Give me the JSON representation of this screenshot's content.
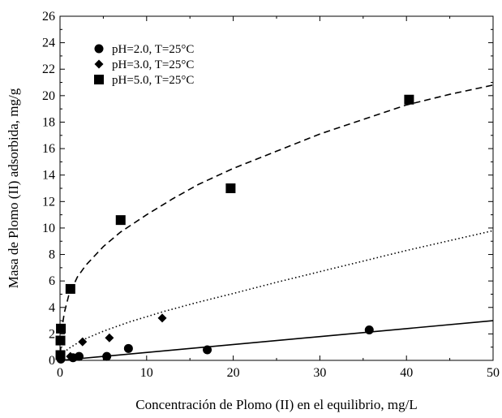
{
  "chart_data": {
    "type": "scatter",
    "title": "",
    "xlabel": "Concentración de Plomo (II) en el equilibrio, mg/L",
    "ylabel": "Masa de Plomo (II) adsorbida, mg/g",
    "xlim": [
      0,
      50
    ],
    "ylim": [
      0,
      26
    ],
    "xticks": [
      0,
      10,
      20,
      30,
      40,
      50
    ],
    "yticks": [
      0,
      2,
      4,
      6,
      8,
      10,
      12,
      14,
      16,
      18,
      20,
      22,
      24,
      26
    ],
    "grid": false,
    "legend_position": "top-left",
    "series": [
      {
        "name": "pH=2.0, T=25°C",
        "marker": "circle",
        "line_style": "solid",
        "points": [
          [
            0.1,
            0.1
          ],
          [
            1.5,
            0.2
          ],
          [
            2.2,
            0.3
          ],
          [
            5.4,
            0.3
          ],
          [
            7.9,
            0.9
          ],
          [
            17.0,
            0.8
          ],
          [
            35.7,
            2.3
          ]
        ],
        "fit": [
          [
            0,
            0
          ],
          [
            50,
            3.0
          ]
        ]
      },
      {
        "name": "pH=3.0, T=25°C",
        "marker": "diamond",
        "line_style": "dotted",
        "points": [
          [
            0.1,
            0.1
          ],
          [
            1.2,
            0.3
          ],
          [
            2.6,
            1.4
          ],
          [
            5.7,
            1.7
          ],
          [
            11.8,
            3.2
          ]
        ],
        "fit": [
          [
            0.2,
            0.35
          ],
          [
            0.5,
            0.6
          ],
          [
            1,
            0.9
          ],
          [
            2,
            1.3
          ],
          [
            3,
            1.65
          ],
          [
            5,
            2.2
          ],
          [
            8,
            2.9
          ],
          [
            12,
            3.7
          ],
          [
            16,
            4.4
          ],
          [
            20,
            5.05
          ],
          [
            25,
            5.9
          ],
          [
            30,
            6.7
          ],
          [
            35,
            7.5
          ],
          [
            40,
            8.3
          ],
          [
            45,
            9.05
          ],
          [
            50,
            9.8
          ]
        ]
      },
      {
        "name": "pH=5.0, T=25°C",
        "marker": "square",
        "line_style": "dashed",
        "points": [
          [
            0.05,
            0.4
          ],
          [
            0.05,
            1.5
          ],
          [
            0.1,
            2.4
          ],
          [
            1.2,
            5.4
          ],
          [
            7.0,
            10.6
          ],
          [
            19.7,
            13.0
          ],
          [
            40.3,
            19.7
          ]
        ],
        "fit": [
          [
            0.05,
            0.5
          ],
          [
            0.2,
            2.3
          ],
          [
            0.5,
            3.6
          ],
          [
            1,
            4.9
          ],
          [
            2,
            6.3
          ],
          [
            3,
            7.2
          ],
          [
            5,
            8.6
          ],
          [
            7,
            9.7
          ],
          [
            10,
            11.0
          ],
          [
            13,
            12.2
          ],
          [
            16,
            13.3
          ],
          [
            20,
            14.5
          ],
          [
            25,
            15.8
          ],
          [
            30,
            17.1
          ],
          [
            35,
            18.2
          ],
          [
            40,
            19.3
          ],
          [
            45,
            20.1
          ],
          [
            50,
            20.8
          ]
        ]
      }
    ]
  }
}
